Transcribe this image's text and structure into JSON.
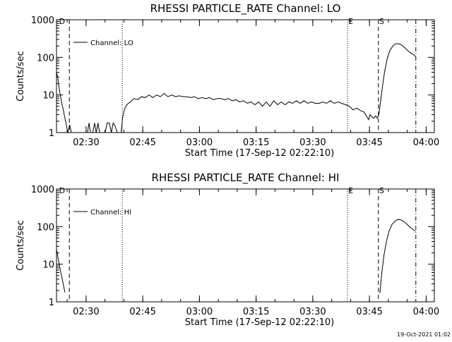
{
  "footer_timestamp": "19-Oct-2021 01:02",
  "chart_data": [
    {
      "type": "line",
      "title": "RHESSI PARTICLE_RATE Channel: LO",
      "xlabel": "Start Time (17-Sep-12 02:22:10)",
      "ylabel": "Counts/sec",
      "x_units": "minutes after 02:22:10",
      "xlim": [
        0,
        100
      ],
      "y_scale": "log",
      "ylim": [
        1,
        1000
      ],
      "x_ticks": [
        {
          "x": 7.83,
          "label": "02:30"
        },
        {
          "x": 22.83,
          "label": "02:45"
        },
        {
          "x": 37.83,
          "label": "03:00"
        },
        {
          "x": 52.83,
          "label": "03:15"
        },
        {
          "x": 67.83,
          "label": "03:30"
        },
        {
          "x": 82.83,
          "label": "03:45"
        },
        {
          "x": 97.83,
          "label": "04:00"
        }
      ],
      "y_ticks": [
        {
          "y": 1,
          "label": "1"
        },
        {
          "y": 10,
          "label": "10"
        },
        {
          "y": 100,
          "label": "100"
        },
        {
          "y": 1000,
          "label": "1000"
        }
      ],
      "legend": {
        "entries": [
          "Channel: LO"
        ],
        "position": "top-left"
      },
      "markers": [
        {
          "x": 0.5,
          "label": "D",
          "style": "dashed",
          "draw_line": false
        },
        {
          "x": 3.4,
          "label": "",
          "style": "dashed",
          "draw_line": true
        },
        {
          "x": 17.4,
          "label": "",
          "style": "dotted",
          "draw_line": true
        },
        {
          "x": 77.0,
          "label": "E",
          "style": "dotted",
          "draw_line": true
        },
        {
          "x": 85.2,
          "label": "S",
          "style": "dashed",
          "draw_line": true
        },
        {
          "x": 95.1,
          "label": "",
          "style": "dashdot",
          "draw_line": true
        }
      ],
      "series": [
        {
          "segments": [
            [
              [
                0,
                40
              ],
              [
                0.3,
                30
              ],
              [
                0.6,
                18
              ],
              [
                1.0,
                10
              ],
              [
                1.4,
                6
              ],
              [
                1.8,
                4
              ],
              [
                2.2,
                2.5
              ],
              [
                2.6,
                1.6
              ],
              [
                3.0,
                1
              ],
              [
                3.5,
                1.6
              ],
              [
                3.9,
                1
              ]
            ],
            [
              [
                8.2,
                1
              ],
              [
                8.6,
                1.8
              ],
              [
                9.0,
                1
              ],
              [
                9.6,
                1
              ],
              [
                10.1,
                1.8
              ],
              [
                10.5,
                1
              ],
              [
                11.0,
                1.8
              ],
              [
                11.4,
                1
              ],
              [
                12.9,
                1
              ],
              [
                13.4,
                1.8
              ],
              [
                14.0,
                1.8
              ],
              [
                14.5,
                1
              ],
              [
                15.0,
                1.8
              ],
              [
                15.5,
                1.5
              ],
              [
                16.1,
                1
              ]
            ],
            [
              [
                17.1,
                1
              ],
              [
                17.5,
                2.5
              ],
              [
                18.0,
                4.2
              ],
              [
                18.6,
                5.5
              ],
              [
                19.5,
                6.5
              ],
              [
                20.5,
                8
              ],
              [
                21.5,
                7.5
              ],
              [
                22.5,
                9
              ],
              [
                23.5,
                8.5
              ],
              [
                24.5,
                10
              ],
              [
                25.5,
                8.5
              ],
              [
                26.5,
                10
              ],
              [
                27.5,
                9
              ],
              [
                28.5,
                11
              ],
              [
                29.5,
                9
              ],
              [
                30.5,
                10
              ],
              [
                31.5,
                9
              ],
              [
                32.5,
                9.5
              ],
              [
                33.5,
                9
              ],
              [
                34.5,
                9
              ],
              [
                35.5,
                8.5
              ],
              [
                36.5,
                9
              ],
              [
                37.5,
                8
              ],
              [
                38.5,
                8.5
              ],
              [
                39.5,
                8
              ],
              [
                40.5,
                8.5
              ],
              [
                41.5,
                7.5
              ],
              [
                42.5,
                8
              ],
              [
                43.5,
                8
              ],
              [
                44.5,
                7.5
              ],
              [
                45.5,
                8
              ],
              [
                46.5,
                7
              ],
              [
                47.5,
                7.5
              ],
              [
                48.5,
                6.5
              ],
              [
                49.5,
                7
              ],
              [
                50.5,
                6
              ],
              [
                51.5,
                6.5
              ],
              [
                52.5,
                5.5
              ],
              [
                53.5,
                6.5
              ],
              [
                54.5,
                5
              ],
              [
                55.5,
                6.5
              ],
              [
                56.5,
                5
              ],
              [
                57.5,
                7
              ],
              [
                58.5,
                5.5
              ],
              [
                59.5,
                6.5
              ],
              [
                60.5,
                5.5
              ],
              [
                61.5,
                6.5
              ],
              [
                62.5,
                6
              ],
              [
                63.5,
                7
              ],
              [
                64.5,
                6
              ],
              [
                65.5,
                7
              ],
              [
                66.5,
                6
              ],
              [
                67.5,
                6.5
              ],
              [
                68.5,
                6
              ],
              [
                69.5,
                6
              ],
              [
                70.5,
                6.5
              ],
              [
                71.5,
                6
              ],
              [
                72.5,
                7
              ],
              [
                73.5,
                6
              ],
              [
                74.5,
                6.5
              ],
              [
                75.5,
                6
              ],
              [
                76.5,
                5.5
              ],
              [
                77.5,
                5
              ],
              [
                78.5,
                4
              ],
              [
                79.5,
                4.5
              ],
              [
                80.5,
                3.8
              ],
              [
                81.3,
                3.6
              ],
              [
                82.0,
                2.8
              ],
              [
                82.6,
                2.2
              ],
              [
                83.0,
                3
              ],
              [
                83.5,
                2.6
              ],
              [
                84.0,
                2.4
              ],
              [
                84.5,
                2.8
              ],
              [
                84.9,
                2.4
              ],
              [
                85.3,
                3
              ],
              [
                85.7,
                6
              ],
              [
                86.2,
                15
              ],
              [
                86.8,
                40
              ],
              [
                87.5,
                90
              ],
              [
                88.2,
                150
              ],
              [
                89.0,
                200
              ],
              [
                89.8,
                230
              ],
              [
                90.6,
                230
              ],
              [
                91.4,
                210
              ],
              [
                92.2,
                180
              ],
              [
                93.0,
                150
              ],
              [
                93.8,
                130
              ],
              [
                94.4,
                120
              ],
              [
                95.0,
                105
              ]
            ]
          ]
        }
      ]
    },
    {
      "type": "line",
      "title": "RHESSI PARTICLE_RATE Channel: HI",
      "xlabel": "Start Time (17-Sep-12 02:22:10)",
      "ylabel": "Counts/sec",
      "x_units": "minutes after 02:22:10",
      "xlim": [
        0,
        100
      ],
      "y_scale": "log",
      "ylim": [
        1,
        1000
      ],
      "x_ticks": [
        {
          "x": 7.83,
          "label": "02:30"
        },
        {
          "x": 22.83,
          "label": "02:45"
        },
        {
          "x": 37.83,
          "label": "03:00"
        },
        {
          "x": 52.83,
          "label": "03:15"
        },
        {
          "x": 67.83,
          "label": "03:30"
        },
        {
          "x": 82.83,
          "label": "03:45"
        },
        {
          "x": 97.83,
          "label": "04:00"
        }
      ],
      "y_ticks": [
        {
          "y": 1,
          "label": "1"
        },
        {
          "y": 10,
          "label": "10"
        },
        {
          "y": 100,
          "label": "100"
        },
        {
          "y": 1000,
          "label": "1000"
        }
      ],
      "legend": {
        "entries": [
          "Channel: HI"
        ],
        "position": "top-left"
      },
      "markers": [
        {
          "x": 0.5,
          "label": "D",
          "style": "dashed",
          "draw_line": false
        },
        {
          "x": 3.4,
          "label": "",
          "style": "dashed",
          "draw_line": true
        },
        {
          "x": 17.4,
          "label": "",
          "style": "dotted",
          "draw_line": true
        },
        {
          "x": 77.0,
          "label": "E",
          "style": "dotted",
          "draw_line": true
        },
        {
          "x": 85.2,
          "label": "S",
          "style": "dashed",
          "draw_line": true
        },
        {
          "x": 95.1,
          "label": "",
          "style": "dashdot",
          "draw_line": true
        }
      ],
      "series": [
        {
          "segments": [
            [
              [
                0,
                25
              ],
              [
                0.4,
                15
              ],
              [
                0.9,
                8
              ],
              [
                1.4,
                4.5
              ],
              [
                1.8,
                3
              ],
              [
                2.2,
                1.8
              ]
            ],
            [
              [
                85.6,
                1.7
              ],
              [
                86.1,
                6
              ],
              [
                86.7,
                18
              ],
              [
                87.3,
                40
              ],
              [
                88.0,
                75
              ],
              [
                88.8,
                115
              ],
              [
                89.6,
                140
              ],
              [
                90.4,
                155
              ],
              [
                91.2,
                150
              ],
              [
                92.0,
                135
              ],
              [
                92.8,
                115
              ],
              [
                93.6,
                95
              ],
              [
                94.3,
                85
              ],
              [
                95.0,
                75
              ]
            ]
          ]
        }
      ]
    }
  ]
}
